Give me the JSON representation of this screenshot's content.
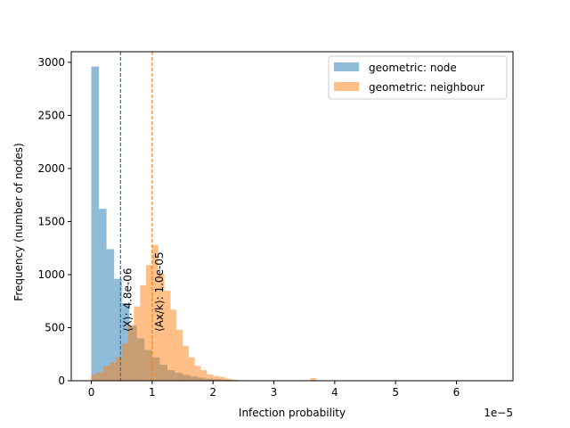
{
  "chart_data": {
    "type": "bar",
    "subtype": "overlapping-histogram",
    "xlabel": "Infection probability",
    "ylabel": "Frequency (number of nodes)",
    "x_offset_label": "1e−5",
    "x_scale": 1e-05,
    "xlim": [
      -0.33,
      6.93
    ],
    "ylim": [
      0,
      3100
    ],
    "x_ticks": [
      0,
      1,
      2,
      3,
      4,
      5,
      6
    ],
    "x_tick_labels": [
      "0",
      "1",
      "2",
      "3",
      "4",
      "5",
      "6"
    ],
    "y_ticks": [
      0,
      500,
      1000,
      1500,
      2000,
      2500,
      3000
    ],
    "y_tick_labels": [
      "0",
      "500",
      "1000",
      "1500",
      "2000",
      "2500",
      "3000"
    ],
    "legend_position": "upper right",
    "series": [
      {
        "name": "geometric: node",
        "color": "#1f77b4",
        "alpha": 0.5,
        "bin_start": 0.0,
        "bin_width": 0.125,
        "counts": [
          2960,
          1620,
          1240,
          960,
          730,
          520,
          400,
          290,
          220,
          150,
          100,
          75,
          55,
          40,
          30,
          20,
          14,
          10,
          7,
          5,
          4,
          3,
          2,
          2,
          1,
          1,
          1,
          0
        ]
      },
      {
        "name": "geometric: neighbour",
        "color": "#ff7f0e",
        "alpha": 0.5,
        "bin_start": 0.0,
        "bin_width": 0.1,
        "counts": [
          60,
          80,
          140,
          170,
          220,
          350,
          520,
          700,
          900,
          1090,
          1280,
          1010,
          850,
          670,
          480,
          330,
          220,
          140,
          100,
          60,
          45,
          35,
          20,
          10,
          5,
          3,
          1,
          1,
          1,
          1,
          0,
          0,
          0,
          0,
          0,
          0,
          25,
          0
        ]
      }
    ],
    "vlines": [
      {
        "x": 0.48,
        "color": "#1f77b4",
        "label": "⟨X⟩: 4.8e-06"
      },
      {
        "x": 1.0,
        "color": "#ff7f0e",
        "label": "⟨Ax/k⟩: 1.0e-05"
      }
    ]
  }
}
